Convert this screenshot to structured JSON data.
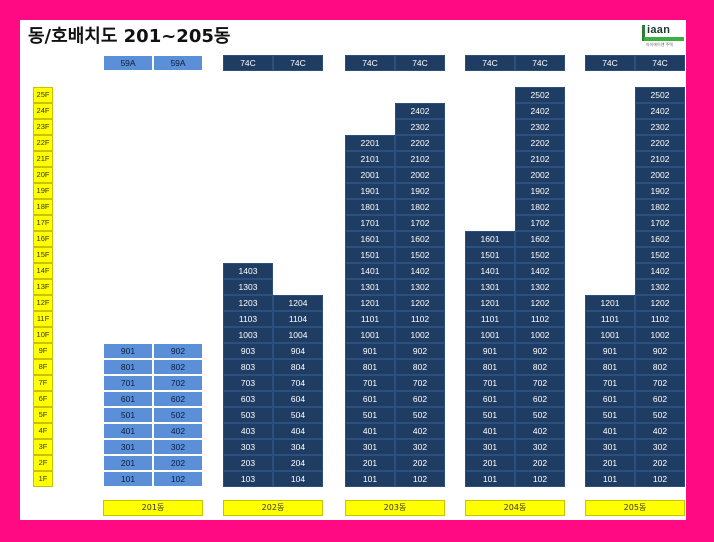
{
  "title": "동/호배치도 201~205동",
  "logo": {
    "word": "iaan",
    "sub": "아이에이엔 주택"
  },
  "floors": [
    "25F",
    "24F",
    "23F",
    "22F",
    "21F",
    "20F",
    "19F",
    "18F",
    "17F",
    "16F",
    "15F",
    "14F",
    "13F",
    "12F",
    "11F",
    "10F",
    "9F",
    "8F",
    "7F",
    "6F",
    "5F",
    "4F",
    "3F",
    "2F",
    "1F"
  ],
  "buildings": [
    {
      "name": "201동",
      "theme": "light",
      "types": [
        "59A",
        "59A"
      ],
      "lines": [
        {
          "top": 9,
          "units": [
            "901",
            "801",
            "701",
            "601",
            "501",
            "401",
            "301",
            "201",
            "101"
          ]
        },
        {
          "top": 9,
          "units": [
            "902",
            "802",
            "702",
            "602",
            "502",
            "402",
            "302",
            "202",
            "102"
          ]
        }
      ]
    },
    {
      "name": "202동",
      "theme": "dark",
      "types": [
        "74C",
        "74C"
      ],
      "lines": [
        {
          "top": 14,
          "units": [
            "1403",
            "1303",
            "1203",
            "1103",
            "1003",
            "903",
            "803",
            "703",
            "603",
            "503",
            "403",
            "303",
            "203",
            "103"
          ]
        },
        {
          "top": 12,
          "units": [
            "1204",
            "1104",
            "1004",
            "904",
            "804",
            "704",
            "604",
            "504",
            "404",
            "304",
            "204",
            "104"
          ]
        }
      ]
    },
    {
      "name": "203동",
      "theme": "dark",
      "types": [
        "74C",
        "74C"
      ],
      "lines": [
        {
          "top": 22,
          "units": [
            "2201",
            "2101",
            "2001",
            "1901",
            "1801",
            "1701",
            "1601",
            "1501",
            "1401",
            "1301",
            "1201",
            "1101",
            "1001",
            "901",
            "801",
            "701",
            "601",
            "501",
            "401",
            "301",
            "201",
            "101"
          ]
        },
        {
          "top": 24,
          "units": [
            "2402",
            "2302",
            "2202",
            "2102",
            "2002",
            "1902",
            "1802",
            "1702",
            "1602",
            "1502",
            "1402",
            "1302",
            "1202",
            "1102",
            "1002",
            "902",
            "802",
            "702",
            "602",
            "502",
            "402",
            "302",
            "202",
            "102"
          ]
        }
      ]
    },
    {
      "name": "204동",
      "theme": "dark",
      "types": [
        "74C",
        "74C"
      ],
      "lines": [
        {
          "top": 16,
          "units": [
            "1601",
            "1501",
            "1401",
            "1301",
            "1201",
            "1101",
            "1001",
            "901",
            "801",
            "701",
            "601",
            "501",
            "401",
            "301",
            "201",
            "101"
          ]
        },
        {
          "top": 25,
          "units": [
            "2502",
            "2402",
            "2302",
            "2202",
            "2102",
            "2002",
            "1902",
            "1802",
            "1702",
            "1602",
            "1502",
            "1402",
            "1302",
            "1202",
            "1102",
            "1002",
            "902",
            "802",
            "702",
            "602",
            "502",
            "402",
            "302",
            "202",
            "102"
          ]
        }
      ]
    },
    {
      "name": "205동",
      "theme": "dark",
      "types": [
        "74C",
        "74C"
      ],
      "lines": [
        {
          "top": 12,
          "units": [
            "1201",
            "1101",
            "1001",
            "901",
            "801",
            "701",
            "601",
            "501",
            "401",
            "301",
            "201",
            "101"
          ]
        },
        {
          "top": 25,
          "units": [
            "2502",
            "2402",
            "2302",
            "2202",
            "2102",
            "2002",
            "1902",
            "1802",
            "1702",
            "1602",
            "1502",
            "1402",
            "1302",
            "1202",
            "1102",
            "1002",
            "902",
            "802",
            "702",
            "602",
            "502",
            "402",
            "302",
            "202",
            "102"
          ]
        }
      ]
    }
  ]
}
